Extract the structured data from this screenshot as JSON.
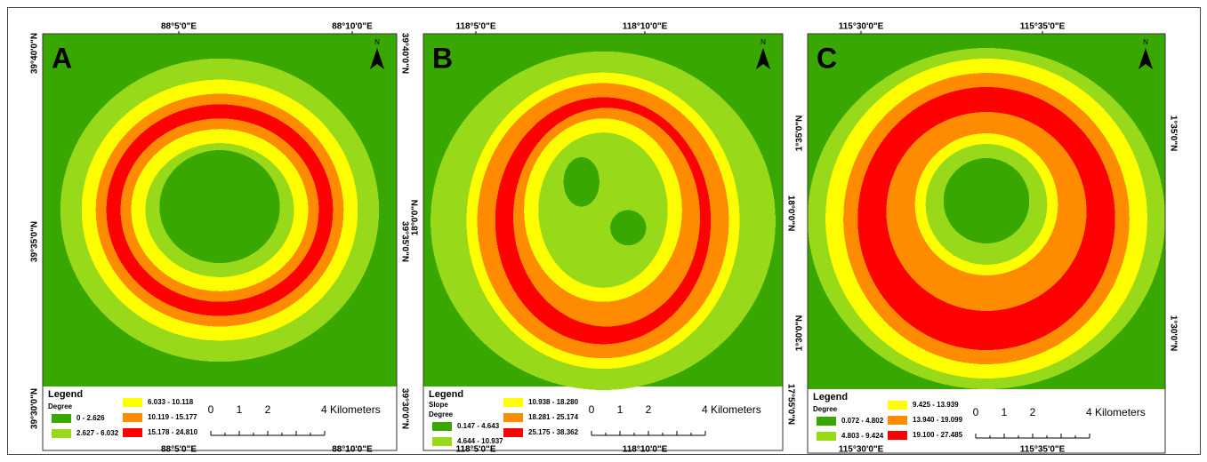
{
  "panels": [
    {
      "label": "A",
      "north": "N",
      "top_ticks": [
        "88°5'0\"E",
        "88°10'0\"E"
      ],
      "bottom_ticks": [
        "88°5'0\"E",
        "88°10'0\"E"
      ],
      "left_ticks": [
        "39°40'0\"N",
        "39°35'0\"N",
        "39°30'0\"N"
      ],
      "right_ticks": [
        "39°40'0\"N",
        "39°35'0\"N",
        "39°30'0\"N"
      ],
      "legend": {
        "title": "Legend",
        "field": "Degree",
        "classes": [
          {
            "range": "0 - 2.626",
            "color": "#38a800"
          },
          {
            "range": "2.627 - 6.032",
            "color": "#98d91a"
          },
          {
            "range": "6.033 - 10.118",
            "color": "#ffff00"
          },
          {
            "range": "10.119 - 15.177",
            "color": "#ff8c00"
          },
          {
            "range": "15.178 - 24.810",
            "color": "#ff0000"
          }
        ]
      },
      "scale": [
        "0",
        "1",
        "2",
        "4 Kilometers"
      ]
    },
    {
      "label": "B",
      "north": "N",
      "top_ticks": [
        "118°5'0\"E",
        "118°10'0\"E"
      ],
      "bottom_ticks": [
        "118°5'0\"E",
        "118°10'0\"E"
      ],
      "left_ticks": [
        "18°0'0\"N"
      ],
      "right_ticks": [
        "18°0'0\"N",
        "17°55'0\"N"
      ],
      "legend": {
        "title": "Legend",
        "subtitle": "Slope",
        "field": "Degree",
        "classes": [
          {
            "range": "0.147 - 4.643",
            "color": "#38a800"
          },
          {
            "range": "4.644 - 10.937",
            "color": "#98d91a"
          },
          {
            "range": "10.938 - 18.280",
            "color": "#ffff00"
          },
          {
            "range": "18.281 - 25.174",
            "color": "#ff8c00"
          },
          {
            "range": "25.175 - 38.362",
            "color": "#ff0000"
          }
        ]
      },
      "scale": [
        "0",
        "1",
        "2",
        "4 Kilometers"
      ]
    },
    {
      "label": "C",
      "north": "N",
      "top_ticks": [
        "115°30'0\"E",
        "115°35'0\"E"
      ],
      "bottom_ticks": [
        "115°30'0\"E",
        "115°35'0\"E"
      ],
      "left_ticks": [
        "1°35'0\"N",
        "1°30'0\"N"
      ],
      "right_ticks": [
        "1°35'0\"N",
        "1°30'0\"N"
      ],
      "legend": {
        "title": "Legend",
        "field": "Degree",
        "classes": [
          {
            "range": "0.072 - 4.802",
            "color": "#38a800"
          },
          {
            "range": "4.803 - 9.424",
            "color": "#98d91a"
          },
          {
            "range": "9.425 - 13.939",
            "color": "#ffff00"
          },
          {
            "range": "13.940 - 19.099",
            "color": "#ff8c00"
          },
          {
            "range": "19.100 - 27.485",
            "color": "#ff0000"
          }
        ]
      },
      "scale": [
        "0",
        "1",
        "2",
        "4 Kilometers"
      ]
    }
  ]
}
